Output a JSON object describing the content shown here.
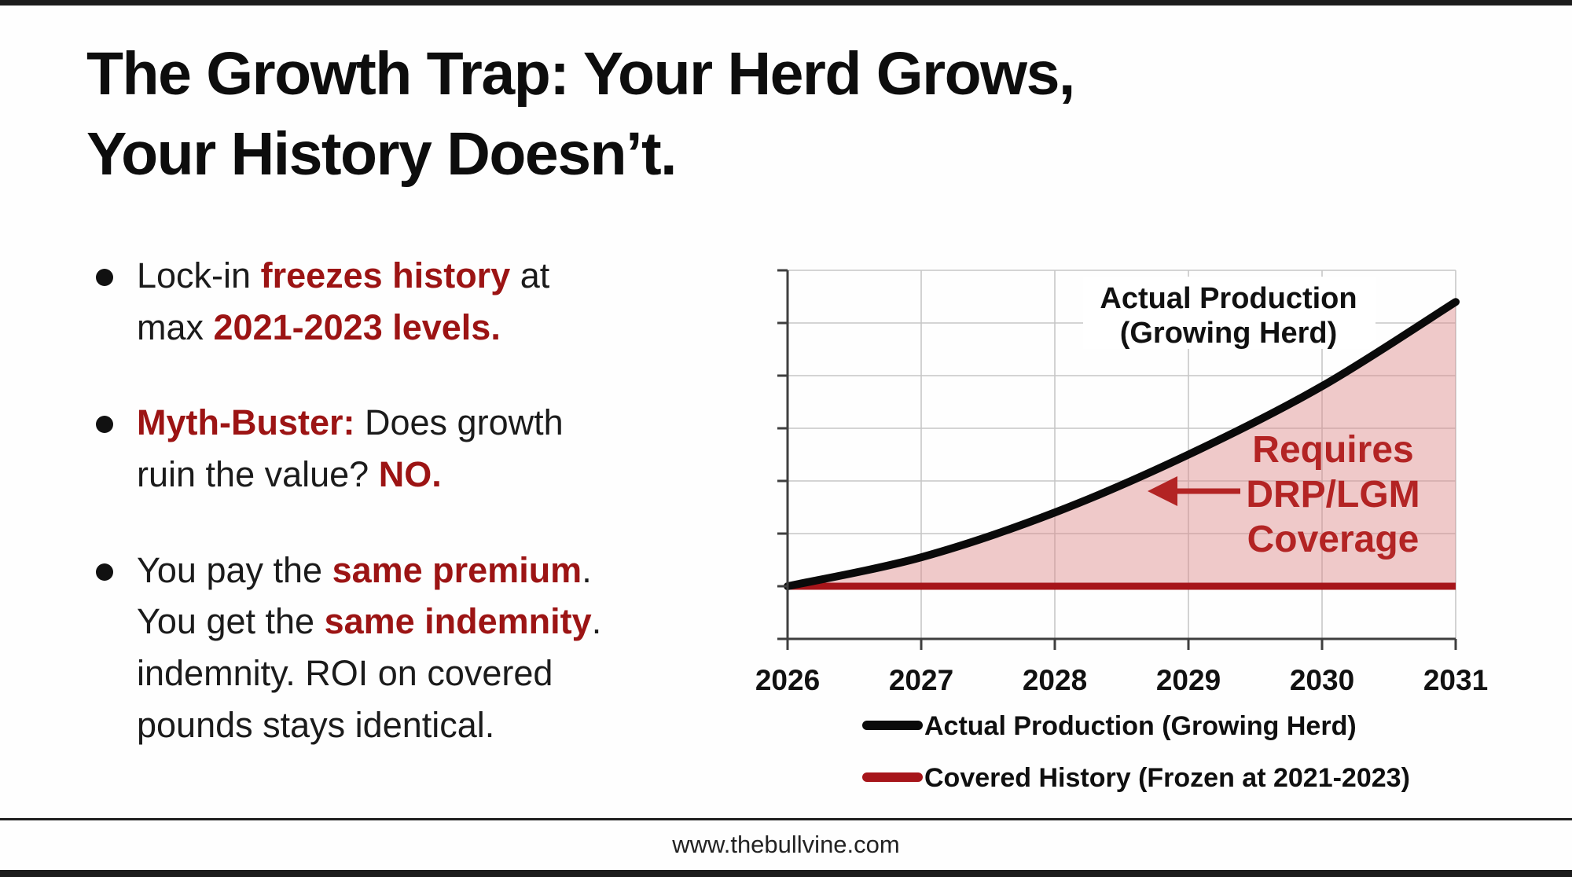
{
  "page": {
    "footer_url": "www.thebullvine.com",
    "accent_red": "#9c1414",
    "background": "#fefefe"
  },
  "title": {
    "line1": "The Growth Trap: Your Herd Grows,",
    "line2": "Your History Doesn’t."
  },
  "bullets": [
    {
      "segments": [
        {
          "text": "Lock-in ",
          "red": false
        },
        {
          "text": "freezes history",
          "red": true
        },
        {
          "text": " at\nmax ",
          "red": false
        },
        {
          "text": "2021-2023 levels.",
          "red": true
        }
      ]
    },
    {
      "segments": [
        {
          "text": "Myth-Buster:",
          "red": true
        },
        {
          "text": " Does growth\nruin the value? ",
          "red": false
        },
        {
          "text": "NO.",
          "red": true
        }
      ]
    },
    {
      "segments": [
        {
          "text": "You pay the ",
          "red": false
        },
        {
          "text": "same premium",
          "red": true
        },
        {
          "text": ".\nYou get the ",
          "red": false
        },
        {
          "text": "same indemnity",
          "red": true
        },
        {
          "text": ".\nindemnity. ROI on covered\npounds stays identical.",
          "red": false
        }
      ]
    }
  ],
  "chart_data": {
    "type": "area",
    "title": "",
    "xlabel": "",
    "ylabel": "",
    "x_labels": [
      "2026",
      "2027",
      "2028",
      "2029",
      "2030",
      "2031"
    ],
    "ylim": [
      0,
      7
    ],
    "grid": true,
    "legend_position": "bottom",
    "series": [
      {
        "name": "Actual Production (Growing Herd)",
        "color": "#0a0a0a",
        "type": "line",
        "values": [
          1.0,
          1.55,
          2.4,
          3.5,
          4.8,
          6.4
        ]
      },
      {
        "name": "Covered History (Frozen at 2021-2023)",
        "color": "#a6151a",
        "type": "line",
        "values": [
          1,
          1,
          1,
          1,
          1,
          1
        ]
      }
    ],
    "fill_between": {
      "upper_series": 0,
      "lower_series": 1,
      "color": "#dd8a8a",
      "opacity": 0.45
    },
    "annotations": {
      "series_label": {
        "lines": [
          "Actual Production",
          "(Growing Herd)"
        ],
        "color": "#111111"
      },
      "coverage_note": {
        "lines": [
          "Requires",
          "DRP/LGM",
          "Coverage"
        ],
        "color": "#b32424",
        "arrow_direction": "left"
      }
    },
    "axis_color": "#3f3f3f",
    "gridline_color": "#c6c6c6",
    "tick_label_color": "#111111"
  }
}
